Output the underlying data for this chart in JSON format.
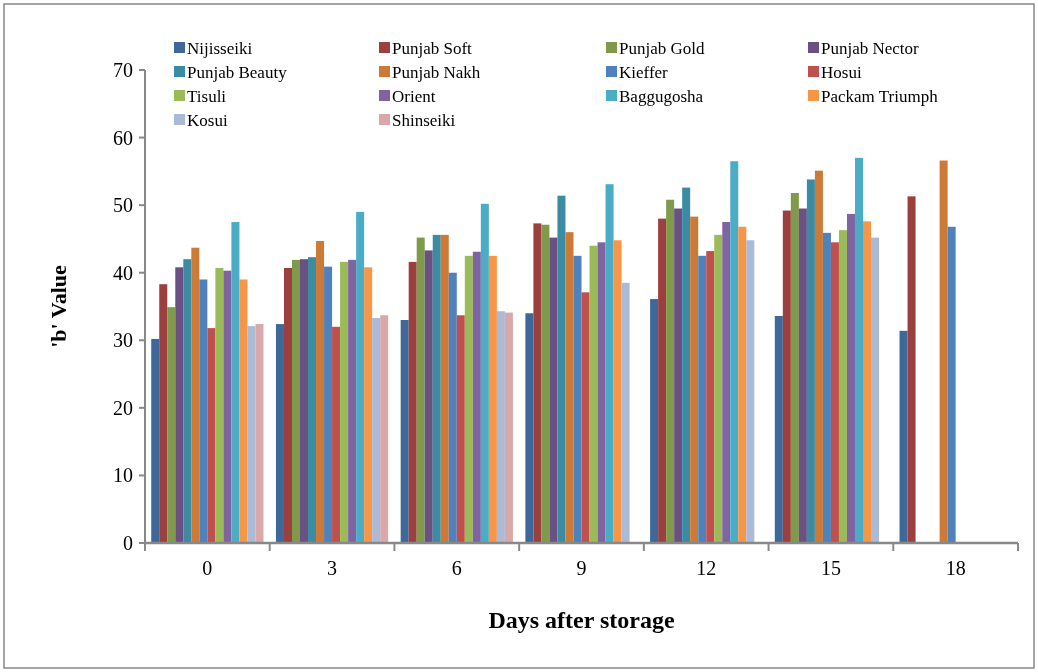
{
  "chart_data": {
    "type": "bar",
    "xlabel": "Days after storage",
    "ylabel": "'b' Value",
    "categories": [
      "0",
      "3",
      "6",
      "9",
      "12",
      "15",
      "18"
    ],
    "ylim": [
      0,
      70
    ],
    "yticks": [
      0,
      10,
      20,
      30,
      40,
      50,
      60,
      70
    ],
    "grid": false,
    "legend": "top",
    "series": [
      {
        "name": "Nijisseiki",
        "color": "#3e6899",
        "values": [
          30.2,
          32.4,
          33.0,
          34.0,
          36.1,
          33.6,
          31.4
        ]
      },
      {
        "name": "Punjab Soft",
        "color": "#9b3f3f",
        "values": [
          38.3,
          40.7,
          41.6,
          47.3,
          48.0,
          49.2,
          51.3
        ]
      },
      {
        "name": "Punjab Gold",
        "color": "#7f9a4a",
        "values": [
          34.9,
          41.9,
          45.2,
          47.1,
          50.8,
          51.8,
          null
        ]
      },
      {
        "name": "Punjab Nector",
        "color": "#6a5083",
        "values": [
          40.8,
          42.0,
          43.3,
          45.2,
          49.5,
          49.5,
          null
        ]
      },
      {
        "name": "Punjab Beauty",
        "color": "#3b8ba3",
        "values": [
          42.0,
          42.3,
          45.6,
          51.4,
          52.6,
          53.8,
          null
        ]
      },
      {
        "name": "Punjab Nakh",
        "color": "#cc7a36",
        "values": [
          43.7,
          44.7,
          45.6,
          46.0,
          48.3,
          55.1,
          56.6
        ]
      },
      {
        "name": "Kieffer",
        "color": "#4f81bd",
        "values": [
          39.0,
          40.9,
          40.0,
          42.5,
          42.5,
          45.9,
          46.8
        ]
      },
      {
        "name": "Hosui",
        "color": "#c0504d",
        "values": [
          31.8,
          32.0,
          33.7,
          37.1,
          43.2,
          44.5,
          null
        ]
      },
      {
        "name": "Tisuli",
        "color": "#9bbb59",
        "values": [
          40.7,
          41.6,
          42.5,
          44.0,
          45.6,
          46.3,
          null
        ]
      },
      {
        "name": "Orient",
        "color": "#8064a2",
        "values": [
          40.3,
          41.9,
          43.1,
          44.5,
          47.5,
          48.7,
          null
        ]
      },
      {
        "name": "Baggugosha",
        "color": "#4bacc6",
        "values": [
          47.5,
          49.0,
          50.2,
          53.1,
          56.5,
          57.0,
          null
        ]
      },
      {
        "name": "Packam Triumph",
        "color": "#f79646",
        "values": [
          39.0,
          40.8,
          42.5,
          44.8,
          46.8,
          47.6,
          null
        ]
      },
      {
        "name": "Kosui",
        "color": "#aabad7",
        "values": [
          32.1,
          33.3,
          34.3,
          38.5,
          44.8,
          45.2,
          null
        ]
      },
      {
        "name": "Shinseiki",
        "color": "#d9a9a9",
        "values": [
          32.4,
          33.7,
          34.1,
          null,
          null,
          null,
          null
        ]
      }
    ]
  }
}
